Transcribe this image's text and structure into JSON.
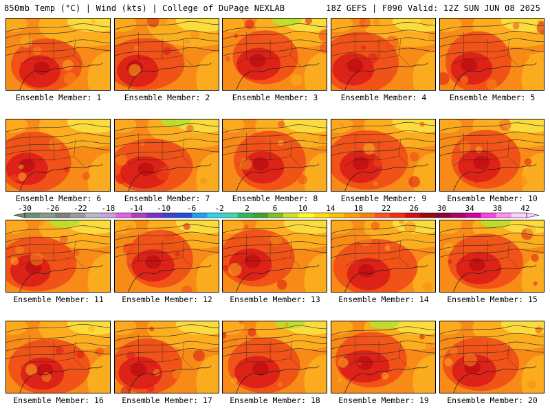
{
  "header": {
    "left": "850mb Temp (°C) | Wind (kts) | College of DuPage NEXLAB",
    "right": "18Z GEFS | F090 Valid: 12Z SUN JUN 08 2025"
  },
  "members": [
    {
      "label": "Ensemble Member: 1"
    },
    {
      "label": "Ensemble Member: 2"
    },
    {
      "label": "Ensemble Member: 3"
    },
    {
      "label": "Ensemble Member: 4"
    },
    {
      "label": "Ensemble Member: 5"
    },
    {
      "label": "Ensemble Member: 6"
    },
    {
      "label": "Ensemble Member: 7"
    },
    {
      "label": "Ensemble Member: 8"
    },
    {
      "label": "Ensemble Member: 9"
    },
    {
      "label": "Ensemble Member: 10"
    },
    {
      "label": "Ensemble Member: 11"
    },
    {
      "label": "Ensemble Member: 12"
    },
    {
      "label": "Ensemble Member: 13"
    },
    {
      "label": "Ensemble Member: 14"
    },
    {
      "label": "Ensemble Member: 15"
    },
    {
      "label": "Ensemble Member: 16"
    },
    {
      "label": "Ensemble Member: 17"
    },
    {
      "label": "Ensemble Member: 18"
    },
    {
      "label": "Ensemble Member: 19"
    },
    {
      "label": "Ensemble Member: 20"
    }
  ],
  "colorbar": {
    "tick_labels": [
      "-30",
      "-26",
      "-22",
      "-18",
      "-14",
      "-10",
      "-6",
      "-2",
      "2",
      "6",
      "10",
      "14",
      "18",
      "22",
      "26",
      "30",
      "34",
      "38",
      "42"
    ],
    "colors": [
      "#6f8f74",
      "#889a88",
      "#7e7e7e",
      "#9a9a9a",
      "#b8b8c8",
      "#c8a0e0",
      "#e060e8",
      "#b040c0",
      "#8030c0",
      "#4040c8",
      "#2050d8",
      "#20a0f0",
      "#30d0f0",
      "#40d8b0",
      "#30b860",
      "#40a030",
      "#80c020",
      "#d0e020",
      "#ffff20",
      "#ffe000",
      "#ffc000",
      "#ffa000",
      "#ff8000",
      "#ff5020",
      "#f03010",
      "#d01010",
      "#a00808",
      "#900030",
      "#b00060",
      "#d000a0",
      "#ff40e0",
      "#ff90f0",
      "#ffd0ff"
    ]
  },
  "palette": {
    "hot": "#d81818",
    "warm": "#f04818",
    "orange": "#f88a18",
    "gold": "#fcb020",
    "yellow": "#fce040",
    "lime": "#b8e030",
    "contour": "#303030"
  }
}
